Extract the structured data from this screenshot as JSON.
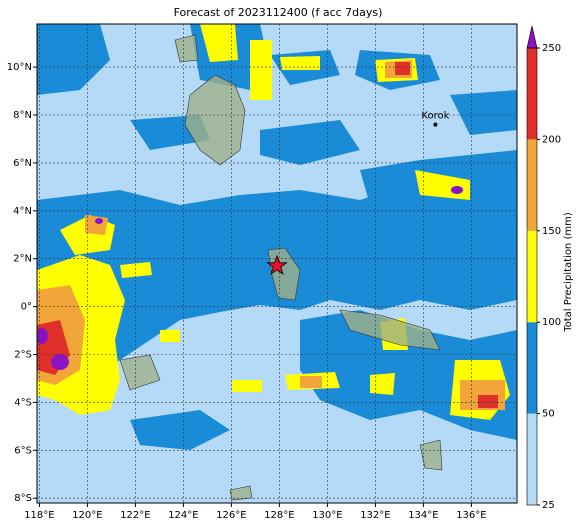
{
  "map": {
    "title": "Forecast of 2023112400 (f acc 7days)",
    "xlim": [
      117.9,
      137.9
    ],
    "ylim": [
      -8.2,
      11.8
    ],
    "xticks": [
      {
        "value": 118,
        "label": "118°E"
      },
      {
        "value": 120,
        "label": "120°E"
      },
      {
        "value": 122,
        "label": "122°E"
      },
      {
        "value": 124,
        "label": "124°E"
      },
      {
        "value": 126,
        "label": "126°E"
      },
      {
        "value": 128,
        "label": "128°E"
      },
      {
        "value": 130,
        "label": "130°E"
      },
      {
        "value": 132,
        "label": "132°E"
      },
      {
        "value": 134,
        "label": "134°E"
      },
      {
        "value": 136,
        "label": "136°E"
      }
    ],
    "yticks": [
      {
        "value": -8,
        "label": "8°S"
      },
      {
        "value": -6,
        "label": "6°S"
      },
      {
        "value": -4,
        "label": "4°S"
      },
      {
        "value": -2,
        "label": "2°S"
      },
      {
        "value": 0,
        "label": "0°"
      },
      {
        "value": 2,
        "label": "2°N"
      },
      {
        "value": 4,
        "label": "4°N"
      },
      {
        "value": 6,
        "label": "6°N"
      },
      {
        "value": 8,
        "label": "8°N"
      },
      {
        "value": 10,
        "label": "10°N"
      }
    ],
    "grid": true,
    "markers": [
      {
        "kind": "star",
        "lon": 127.9,
        "lat": 1.7,
        "color": "#e8102a"
      },
      {
        "kind": "dot",
        "label": "Korok",
        "lon": 134.5,
        "lat": 7.6,
        "color": "#000000"
      }
    ],
    "colorbar": {
      "label": "Total Precipitation (mm)",
      "levels": [
        25,
        50,
        100,
        150,
        200,
        250
      ],
      "colors": [
        "#b4daf7",
        "#1a8bd6",
        "#ffff00",
        "#f2a63a",
        "#e0302a"
      ],
      "extend_color": "#8c12c4"
    }
  }
}
